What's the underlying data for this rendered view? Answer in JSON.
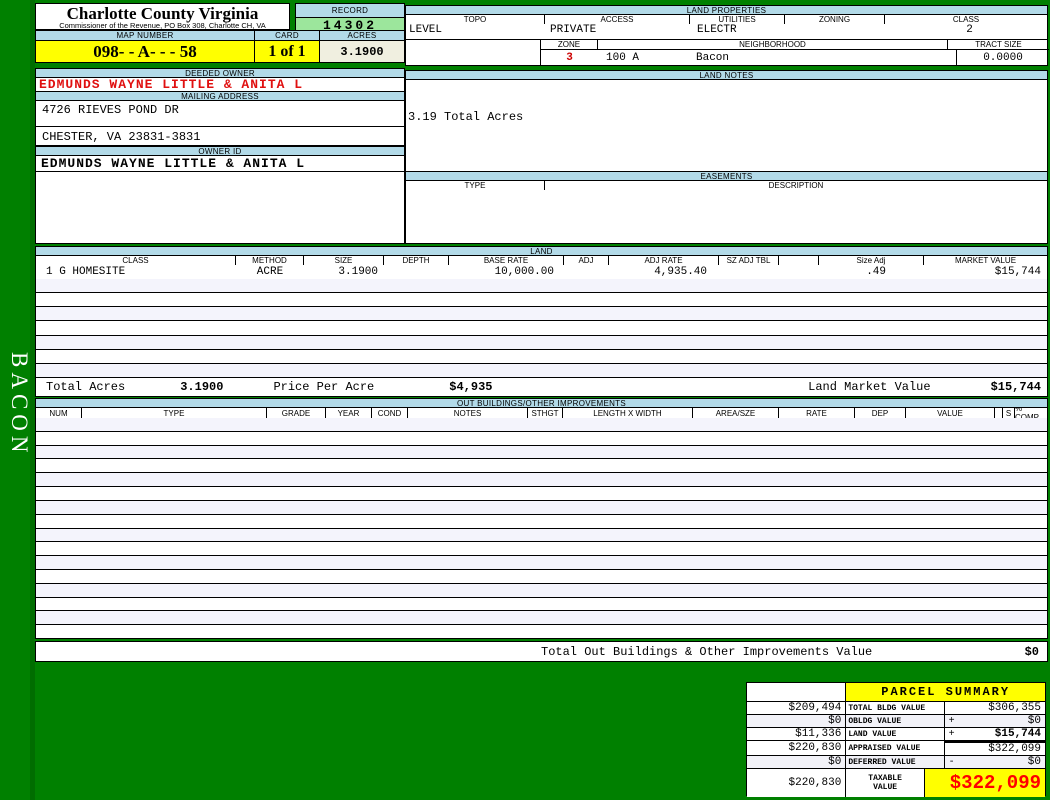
{
  "sidebar": {
    "vertical_label": "BACON"
  },
  "header": {
    "county_title": "Charlotte County Virginia",
    "commissioner_line": "Commissioner of the Revenue, PO Box 308, Charlotte CH, VA",
    "record_label": "RECORD",
    "record_number": "14302",
    "map_number_label": "MAP NUMBER",
    "map_number": "098- - A- -  - 58",
    "card_label": "CARD",
    "card_value": "1 of 1",
    "acres_label": "ACRES",
    "acres_value": "3.1900"
  },
  "owner": {
    "deeded_owner_label": "DEEDED OWNER",
    "deeded_owner": "EDMUNDS WAYNE LITTLE & ANITA L",
    "mailing_address_label": "MAILING ADDRESS",
    "address_line1": "4726 RIEVES POND DR",
    "address_line2": "CHESTER, VA 23831-3831",
    "owner_id_label": "OWNER ID",
    "owner_id": "EDMUNDS WAYNE LITTLE & ANITA L"
  },
  "land_properties": {
    "title": "LAND PROPERTIES",
    "topo_label": "TOPO",
    "topo": "LEVEL",
    "access_label": "ACCESS",
    "access": "PRIVATE",
    "utilities_label": "UTILITIES",
    "utilities": "ELECTR",
    "zoning_label": "ZONING",
    "zoning": "",
    "class_label": "CLASS",
    "class_value": "2",
    "zone_label": "ZONE",
    "zone_value": "3",
    "zone_code": "100 A",
    "neighborhood_label": "NEIGHBORHOOD",
    "neighborhood": "Bacon",
    "tract_size_label": "TRACT SIZE",
    "tract_size": "0.0000"
  },
  "land_notes": {
    "title": "LAND NOTES",
    "note": "3.19 Total Acres"
  },
  "easements": {
    "title": "EASEMENTS",
    "type_label": "TYPE",
    "description_label": "DESCRIPTION"
  },
  "land": {
    "title": "LAND",
    "columns": [
      "CLASS",
      "METHOD",
      "SIZE",
      "DEPTH",
      "BASE RATE",
      "ADJ",
      "ADJ RATE",
      "SZ ADJ TBL",
      "",
      "Size Adj",
      "MARKET VALUE"
    ],
    "rows": [
      [
        "1 G HOMESITE",
        "ACRE",
        "3.1900",
        "",
        "10,000.00",
        "",
        "4,935.40",
        "",
        "",
        ".49",
        "$15,744"
      ]
    ],
    "empty_row_count": 7,
    "totals": {
      "total_acres_label": "Total Acres",
      "total_acres": "3.1900",
      "price_per_acre_label": "Price Per Acre",
      "price_per_acre": "$4,935",
      "land_market_value_label": "Land Market Value",
      "land_market_value": "$15,744"
    }
  },
  "out_buildings": {
    "title": "OUT BUILDINGS/OTHER IMPROVEMENTS",
    "columns": [
      "NUM",
      "TYPE",
      "GRADE",
      "YEAR",
      "COND",
      "NOTES",
      "STHGT",
      "LENGTH X WIDTH",
      "AREA/SZE",
      "RATE",
      "DEP",
      "VALUE",
      "",
      "S",
      "% COMP"
    ],
    "empty_row_count": 16,
    "total_label": "Total Out Buildings & Other Improvements Value",
    "total_value": "$0"
  },
  "parcel_summary": {
    "title": "PARCEL SUMMARY",
    "rows": [
      {
        "prior": "$209,494",
        "label": "TOTAL BLDG VALUE",
        "op": "",
        "value": "$306,355"
      },
      {
        "prior": "$0",
        "label": "OBLDG VALUE",
        "op": "+",
        "value": "$0"
      },
      {
        "prior": "$11,336",
        "label": "LAND VALUE",
        "op": "+",
        "value": "$15,744"
      },
      {
        "prior": "$220,830",
        "label": "APPRAISED VALUE",
        "op": "",
        "value": "$322,099"
      },
      {
        "prior": "$0",
        "label": "DEFERRED VALUE",
        "op": "-",
        "value": "$0"
      }
    ],
    "taxable": {
      "prior": "$220,830",
      "label_line1": "TAXABLE",
      "label_line2": "VALUE",
      "value": "$322,099"
    }
  },
  "colors": {
    "page_green": "#008000",
    "header_bar_blue": "#B2DAE8",
    "record_value_green": "#9CE69C",
    "highlight_yellow": "#FFFF00",
    "acres_cream": "#F0EFE0",
    "stripe_lavender": "#F4F4FC",
    "owner_red": "#E01010",
    "alert_red": "#FF0000"
  }
}
